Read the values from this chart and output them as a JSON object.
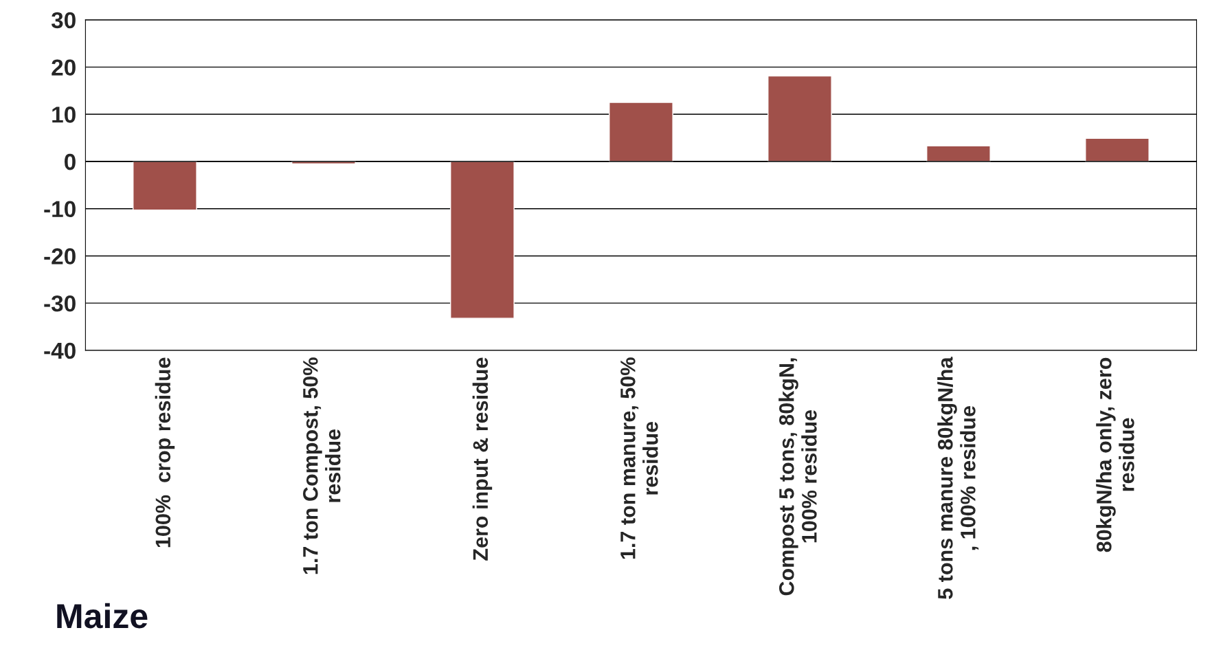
{
  "chart_data": {
    "type": "bar",
    "title": "Maize",
    "categories": [
      "100%  crop residue",
      "1.7 ton Compost, 50%\nresidue",
      "Zero input & residue",
      "1.7 ton manure, 50%\nresidue",
      "Compost 5 tons, 80kgN,\n100% residue",
      "5 tons manure 80kgN/ha\n, 100% residue",
      "80kgN/ha only, zero\nresidue"
    ],
    "values": [
      -10.3,
      -0.5,
      -33.2,
      12.5,
      18.1,
      3.3,
      4.9
    ],
    "color": "#a0504a",
    "ylim": [
      -40,
      30
    ],
    "yticks": [
      -40,
      -30,
      -20,
      -10,
      0,
      10,
      20,
      30
    ],
    "grid": "y"
  }
}
